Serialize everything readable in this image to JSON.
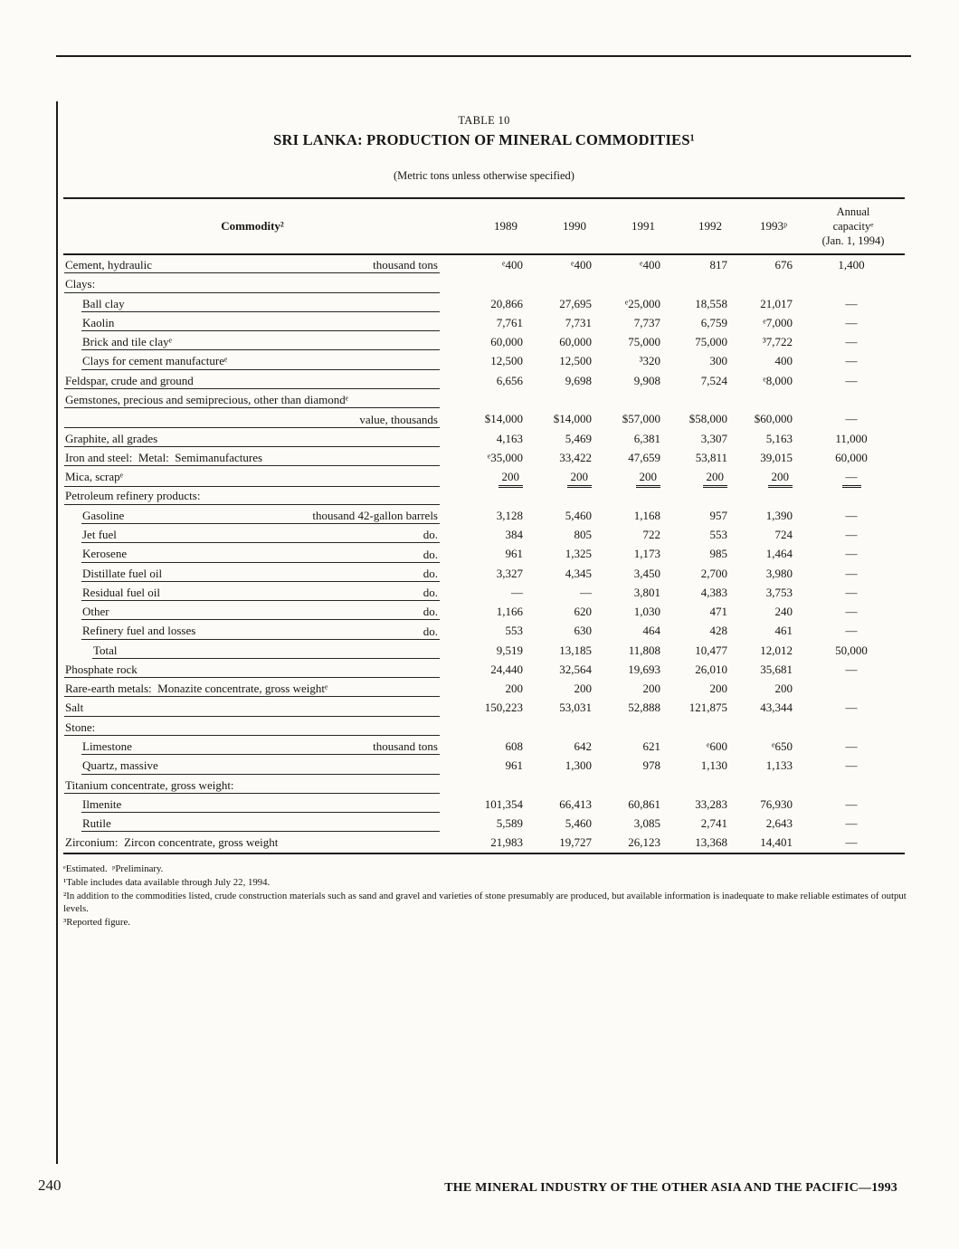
{
  "page": {
    "title": {
      "table_number": "TABLE 10",
      "main": "SRI LANKA: PRODUCTION OF MINERAL COMMODITIES¹",
      "subtitle": "(Metric tons unless otherwise specified)"
    },
    "footer": {
      "page_number": "240",
      "publication": "THE MINERAL INDUSTRY OF THE OTHER ASIA AND THE PACIFIC—1993"
    }
  },
  "table": {
    "header": {
      "commodity": "Commodity²",
      "years": [
        "1989",
        "1990",
        "1991",
        "1992",
        "1993ᵖ"
      ],
      "capacity_lines": [
        "Annual",
        "capacityᵉ",
        "(Jan. 1, 1994)"
      ]
    },
    "rows": [
      {
        "name": "Cement, hydraulic",
        "indent": 0,
        "unit": "thousand tons",
        "values": [
          "ᵉ400",
          "ᵉ400",
          "ᵉ400",
          "817",
          "676",
          "1,400"
        ]
      },
      {
        "name": "Clays:",
        "indent": 0,
        "unit": "",
        "values": [
          "",
          "",
          "",
          "",
          "",
          ""
        ]
      },
      {
        "name": "Ball clay",
        "indent": 1,
        "unit": "",
        "values": [
          "20,866",
          "27,695",
          "ᵉ25,000",
          "18,558",
          "21,017",
          "—"
        ]
      },
      {
        "name": "Kaolin",
        "indent": 1,
        "unit": "",
        "values": [
          "7,761",
          "7,731",
          "7,737",
          "6,759",
          "ᵉ7,000",
          "—"
        ]
      },
      {
        "name": "Brick and tile clayᵉ",
        "indent": 1,
        "unit": "",
        "values": [
          "60,000",
          "60,000",
          "75,000",
          "75,000",
          "³7,722",
          "—"
        ]
      },
      {
        "name": "Clays for cement manufactureᵉ",
        "indent": 1,
        "unit": "",
        "values": [
          "12,500",
          "12,500",
          "³320",
          "300",
          "400",
          "—"
        ]
      },
      {
        "name": "Feldspar, crude and ground",
        "indent": 0,
        "unit": "",
        "values": [
          "6,656",
          "9,698",
          "9,908",
          "7,524",
          "ᵉ8,000",
          "—"
        ]
      },
      {
        "name": "Gemstones, precious and semiprecious, other than diamondᵉ",
        "indent": 0,
        "unit": "",
        "values": [
          "",
          "",
          "",
          "",
          "",
          ""
        ]
      },
      {
        "name": "",
        "indent": 0,
        "unit": "value, thousands",
        "values": [
          "$14,000",
          "$14,000",
          "$57,000",
          "$58,000",
          "$60,000",
          "—"
        ]
      },
      {
        "name": "Graphite, all grades",
        "indent": 0,
        "unit": "",
        "values": [
          "4,163",
          "5,469",
          "6,381",
          "3,307",
          "5,163",
          "11,000"
        ]
      },
      {
        "name": "Iron and steel:  Metal:  Semimanufactures",
        "indent": 0,
        "unit": "",
        "values": [
          "ᵉ35,000",
          "33,422",
          "47,659",
          "53,811",
          "39,015",
          "60,000"
        ]
      },
      {
        "name": "Mica, scrapᵉ",
        "indent": 0,
        "unit": "",
        "values": [
          "200",
          "200",
          "200",
          "200",
          "200",
          "—"
        ],
        "double_rule": true
      },
      {
        "name": "Petroleum refinery products:",
        "indent": 0,
        "unit": "",
        "values": [
          "",
          "",
          "",
          "",
          "",
          ""
        ]
      },
      {
        "name": "Gasoline",
        "indent": 1,
        "unit": "thousand 42-gallon barrels",
        "values": [
          "3,128",
          "5,460",
          "1,168",
          "957",
          "1,390",
          "—"
        ]
      },
      {
        "name": "Jet fuel",
        "indent": 1,
        "unit": "do.",
        "values": [
          "384",
          "805",
          "722",
          "553",
          "724",
          "—"
        ]
      },
      {
        "name": "Kerosene",
        "indent": 1,
        "unit": "do.",
        "values": [
          "961",
          "1,325",
          "1,173",
          "985",
          "1,464",
          "—"
        ]
      },
      {
        "name": "Distillate fuel oil",
        "indent": 1,
        "unit": "do.",
        "values": [
          "3,327",
          "4,345",
          "3,450",
          "2,700",
          "3,980",
          "—"
        ]
      },
      {
        "name": "Residual fuel oil",
        "indent": 1,
        "unit": "do.",
        "values": [
          "—",
          "—",
          "3,801",
          "4,383",
          "3,753",
          "—"
        ]
      },
      {
        "name": "Other",
        "indent": 1,
        "unit": "do.",
        "values": [
          "1,166",
          "620",
          "1,030",
          "471",
          "240",
          "—"
        ]
      },
      {
        "name": "Refinery fuel and losses",
        "indent": 1,
        "unit": "do.",
        "values": [
          "553",
          "630",
          "464",
          "428",
          "461",
          "—"
        ]
      },
      {
        "name": "Total",
        "indent": 2,
        "unit": "",
        "values": [
          "9,519",
          "13,185",
          "11,808",
          "10,477",
          "12,012",
          "50,000"
        ]
      },
      {
        "name": "Phosphate rock",
        "indent": 0,
        "unit": "",
        "values": [
          "24,440",
          "32,564",
          "19,693",
          "26,010",
          "35,681",
          "—"
        ]
      },
      {
        "name": "Rare-earth metals:  Monazite concentrate, gross weightᵉ",
        "indent": 0,
        "unit": "",
        "values": [
          "200",
          "200",
          "200",
          "200",
          "200",
          ""
        ]
      },
      {
        "name": "Salt",
        "indent": 0,
        "unit": "",
        "values": [
          "150,223",
          "53,031",
          "52,888",
          "121,875",
          "43,344",
          "—"
        ]
      },
      {
        "name": "Stone:",
        "indent": 0,
        "unit": "",
        "values": [
          "",
          "",
          "",
          "",
          "",
          ""
        ]
      },
      {
        "name": "Limestone",
        "indent": 1,
        "unit": "thousand tons",
        "values": [
          "608",
          "642",
          "621",
          "ᵉ600",
          "ᵉ650",
          "—"
        ]
      },
      {
        "name": "Quartz, massive",
        "indent": 1,
        "unit": "",
        "values": [
          "961",
          "1,300",
          "978",
          "1,130",
          "1,133",
          "—"
        ]
      },
      {
        "name": "Titanium concentrate, gross weight:",
        "indent": 0,
        "unit": "",
        "values": [
          "",
          "",
          "",
          "",
          "",
          ""
        ]
      },
      {
        "name": "Ilmenite",
        "indent": 1,
        "unit": "",
        "values": [
          "101,354",
          "66,413",
          "60,861",
          "33,283",
          "76,930",
          "—"
        ]
      },
      {
        "name": "Rutile",
        "indent": 1,
        "unit": "",
        "values": [
          "5,589",
          "5,460",
          "3,085",
          "2,741",
          "2,643",
          "—"
        ]
      },
      {
        "name": "Zirconium:  Zircon concentrate, gross weight",
        "indent": 0,
        "unit": "",
        "values": [
          "21,983",
          "19,727",
          "26,123",
          "13,368",
          "14,401",
          "—"
        ]
      }
    ]
  },
  "footnotes": [
    "ᵉEstimated.  ᵖPreliminary.",
    "¹Table includes data available through July 22, 1994.",
    "²In addition to the commodities listed, crude construction materials such as sand and gravel and varieties of stone presumably are produced, but available information is inadequate to make reliable estimates of output levels.",
    "³Reported figure."
  ]
}
